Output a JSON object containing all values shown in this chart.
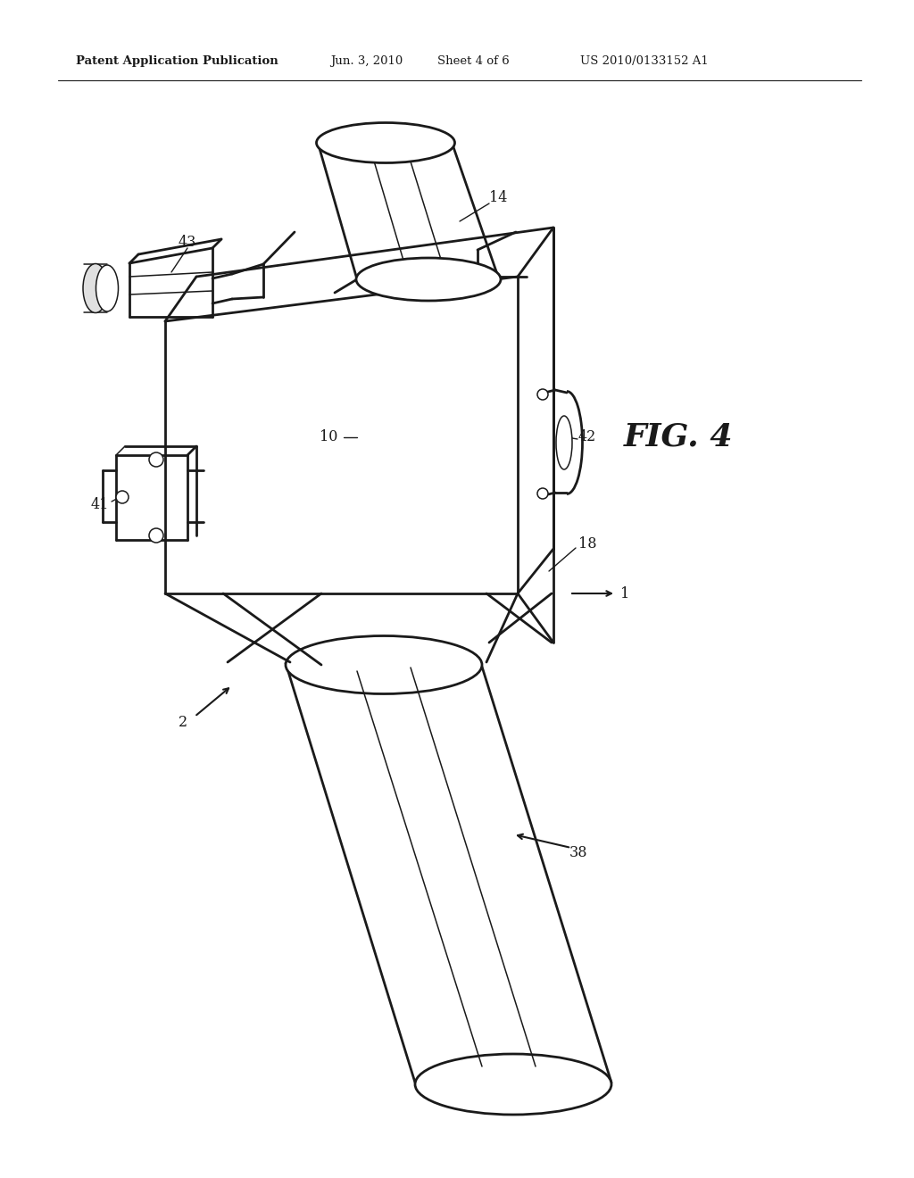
{
  "title_line1": "Patent Application Publication",
  "title_date": "Jun. 3, 2010",
  "title_sheet": "Sheet 4 of 6",
  "title_patent": "US 2010/0133152 A1",
  "fig_label": "FIG. 4",
  "background_color": "#ffffff",
  "line_color": "#1a1a1a",
  "text_color": "#1a1a1a",
  "lw_main": 2.0,
  "lw_thin": 1.1,
  "lw_label": 1.0
}
